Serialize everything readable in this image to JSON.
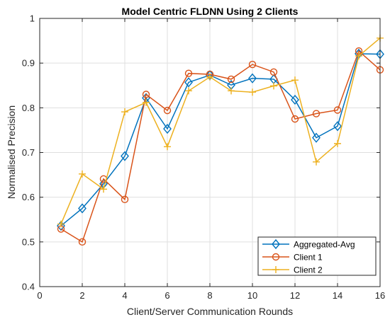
{
  "chart_data": {
    "type": "line",
    "title": "Model Centric FLDNN Using 2 Clients",
    "xlabel": "Client/Server Communication Rounds",
    "ylabel": "Normalised Precision",
    "xlim": [
      0,
      16
    ],
    "ylim": [
      0.4,
      1
    ],
    "xticks": [
      "0",
      "2",
      "4",
      "6",
      "8",
      "10",
      "12",
      "14",
      "16"
    ],
    "yticks": [
      "0.4",
      "0.5",
      "0.6",
      "0.7",
      "0.8",
      "0.9",
      "1"
    ],
    "grid": true,
    "legend_position": "bottom-right",
    "x": [
      1,
      2,
      3,
      4,
      5,
      6,
      7,
      8,
      9,
      10,
      11,
      12,
      13,
      14,
      15,
      16
    ],
    "series": [
      {
        "name": "Aggregated-Avg",
        "color": "#0072BD",
        "marker": "diamond",
        "values": [
          0.536,
          0.575,
          0.63,
          0.692,
          0.822,
          0.753,
          0.857,
          0.873,
          0.851,
          0.866,
          0.864,
          0.818,
          0.733,
          0.759,
          0.921,
          0.92
        ]
      },
      {
        "name": "Client 1",
        "color": "#D95319",
        "marker": "circle",
        "values": [
          0.529,
          0.5,
          0.641,
          0.595,
          0.83,
          0.794,
          0.877,
          0.875,
          0.864,
          0.897,
          0.88,
          0.775,
          0.787,
          0.795,
          0.927,
          0.885
        ]
      },
      {
        "name": "Client 2",
        "color": "#EDB120",
        "marker": "plus",
        "values": [
          0.54,
          0.652,
          0.618,
          0.791,
          0.812,
          0.713,
          0.838,
          0.869,
          0.838,
          0.835,
          0.849,
          0.862,
          0.679,
          0.72,
          0.916,
          0.956
        ]
      }
    ]
  }
}
